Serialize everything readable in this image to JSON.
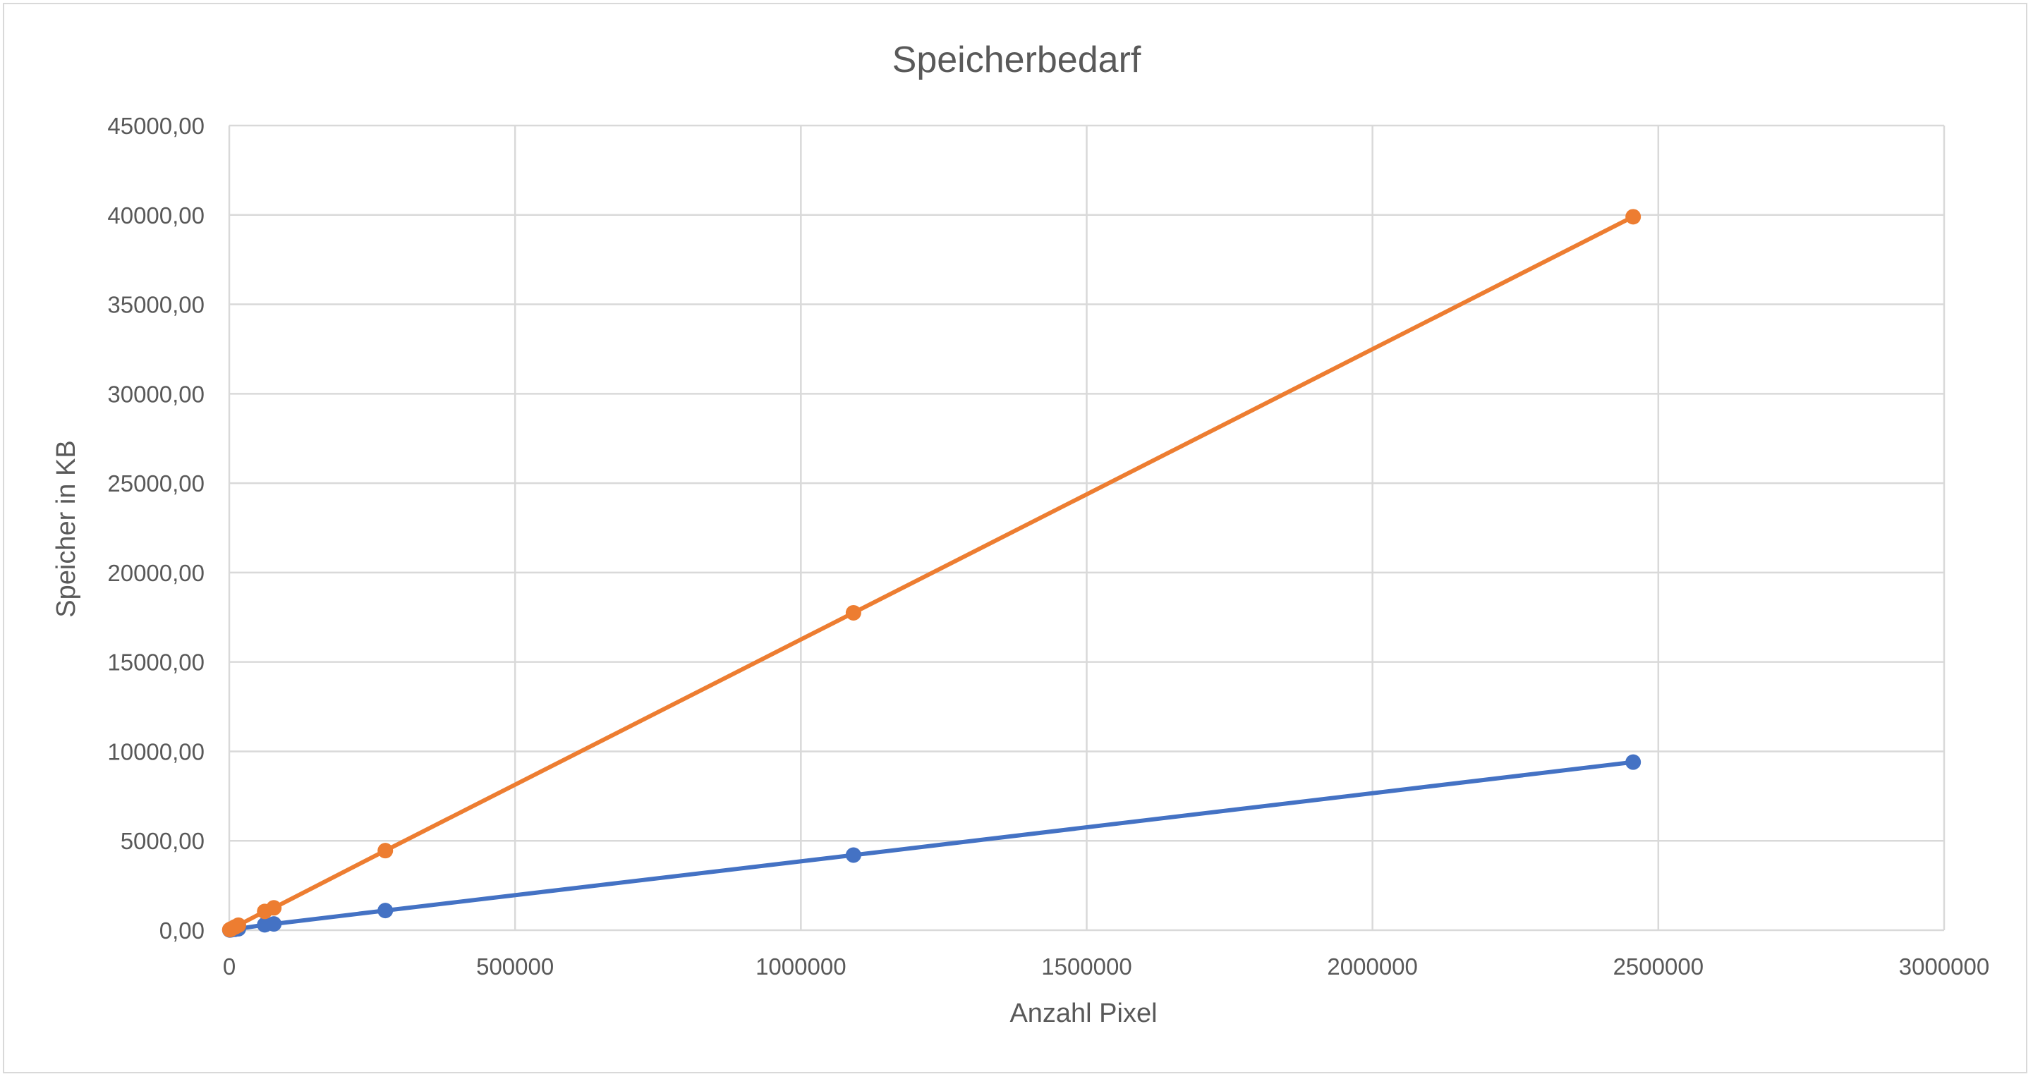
{
  "chart_data": {
    "type": "scatter",
    "title": "Speicherbedarf",
    "xlabel": "Anzahl Pixel",
    "ylabel": "Speicher in KB",
    "xlim": [
      0,
      3000000
    ],
    "ylim": [
      0,
      45000
    ],
    "x_ticks": [
      "0",
      "500000",
      "1000000",
      "1500000",
      "2000000",
      "2500000",
      "3000000"
    ],
    "y_ticks": [
      "0,00",
      "5000,00",
      "10000,00",
      "15000,00",
      "20000,00",
      "25000,00",
      "30000,00",
      "35000,00",
      "40000,00",
      "45000,00"
    ],
    "grid": true,
    "legend": "none",
    "series": [
      {
        "color": "#4472C4",
        "points": [
          [
            1000,
            10
          ],
          [
            4000,
            25
          ],
          [
            10000,
            50
          ],
          [
            16000,
            80
          ],
          [
            62000,
            300
          ],
          [
            78000,
            350
          ],
          [
            273000,
            1100
          ],
          [
            1092000,
            4200
          ],
          [
            2456000,
            9400
          ]
        ]
      },
      {
        "color": "#ED7D31",
        "points": [
          [
            1000,
            30
          ],
          [
            4000,
            80
          ],
          [
            10000,
            180
          ],
          [
            16000,
            280
          ],
          [
            62000,
            1050
          ],
          [
            78000,
            1250
          ],
          [
            273000,
            4450
          ],
          [
            1092000,
            17750
          ],
          [
            2456000,
            39900
          ]
        ]
      }
    ]
  }
}
